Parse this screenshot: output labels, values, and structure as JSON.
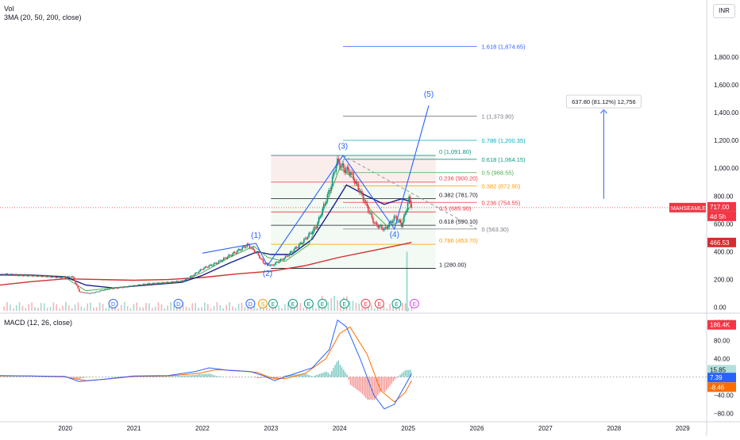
{
  "header": {
    "vol_label": "Vol",
    "ma_label": "3MA (20, 50, 200, close)",
    "currency": "INR"
  },
  "macd_label": "MACD (12, 26, close)",
  "symbol_tag": "MAHSEAMLES",
  "price_tags": {
    "last": "717.00",
    "time_left": "4d 5h",
    "ma200": "466.53",
    "vol": "186.4K"
  },
  "macd_tags": {
    "hist": "15.85",
    "macd": "7.39",
    "signal": "-8.46"
  },
  "measure_box": "637.80 (81.12%) 12,756",
  "wave_labels": [
    "(1)",
    "(2)",
    "(3)",
    "(4)",
    "(5)"
  ],
  "fib_upper": [
    {
      "text": "1.618 (1,874.65)",
      "price": 1874.65,
      "color": "#2962ff"
    },
    {
      "text": "1 (1,373.80)",
      "price": 1373.8,
      "color": "#787b86"
    },
    {
      "text": "0.786 (1,200.35)",
      "price": 1200.35,
      "color": "#00acc1"
    },
    {
      "text": "0.618 (1,064.15)",
      "price": 1064.15,
      "color": "#089981"
    },
    {
      "text": "0.5 (968.55)",
      "price": 968.55,
      "color": "#4caf50"
    },
    {
      "text": "0.382 (872.90)",
      "price": 872.9,
      "color": "#ff9800"
    },
    {
      "text": "0.236 (754.55)",
      "price": 754.55,
      "color": "#f23645"
    },
    {
      "text": "0 (563.30)",
      "price": 563.3,
      "color": "#787b86"
    }
  ],
  "fib_lower": [
    {
      "text": "0 (1,091.80)",
      "price": 1091.8,
      "color": "#089981"
    },
    {
      "text": "0.236 (900.20)",
      "price": 900.2,
      "color": "#f23645"
    },
    {
      "text": "0.382 (781.70)",
      "price": 781.7,
      "color": "#131722"
    },
    {
      "text": "0.5 (685.90)",
      "price": 685.9,
      "color": "#f23645"
    },
    {
      "text": "0.618 (590.10)",
      "price": 590.1,
      "color": "#131722"
    },
    {
      "text": "0.786 (453.70)",
      "price": 453.7,
      "color": "#ff9800"
    },
    {
      "text": "1 (280.00)",
      "price": 280.0,
      "color": "#131722"
    }
  ],
  "event_markers": [
    {
      "label": "D",
      "color": "#2962ff",
      "year": 2020.7
    },
    {
      "label": "D",
      "color": "#2962ff",
      "year": 2021.65
    },
    {
      "label": "D",
      "color": "#2962ff",
      "year": 2022.7
    },
    {
      "label": "S",
      "color": "#ff9800",
      "year": 2022.88
    },
    {
      "label": "E",
      "color": "#089981",
      "year": 2023.03
    },
    {
      "label": "E",
      "color": "#089981",
      "year": 2023.32
    },
    {
      "label": "E",
      "color": "#089981",
      "year": 2023.55
    },
    {
      "label": "E",
      "color": "#089981",
      "year": 2023.75
    },
    {
      "label": "E",
      "color": "#089981",
      "year": 2024.07
    },
    {
      "label": "E",
      "color": "#f23645",
      "year": 2024.38
    },
    {
      "label": "E",
      "color": "#f23645",
      "year": 2024.58
    },
    {
      "label": "E",
      "color": "#089981",
      "year": 2024.83
    },
    {
      "label": "E",
      "color": "#e040fb",
      "year": 2025.09
    }
  ],
  "colors": {
    "up": "#089981",
    "down": "#f23645",
    "ma20": "#4caf50",
    "ma50": "#131f8e",
    "ma200": "#d32f2f",
    "macd": "#2962ff",
    "signal": "#ff6d00",
    "wave": "#2962ff"
  },
  "chart_data": [
    {
      "type": "line",
      "title": "",
      "y_ticks": [
        0,
        200,
        400,
        600,
        800,
        1000,
        1200,
        1400,
        1600,
        1800
      ],
      "y_tick_labels": [
        "0.00",
        "200.00",
        "400.00",
        "600.00",
        "800.00",
        "1,000.00",
        "1,200.00",
        "1,400.00",
        "1,600.00",
        "1,800.00"
      ],
      "x_ticks": [
        2020,
        2021,
        2022,
        2023,
        2024,
        2025,
        2026,
        2027,
        2028,
        2029
      ],
      "xlim": [
        2019.05,
        2029.35
      ],
      "ylim": [
        -30,
        2055
      ],
      "series": [
        {
          "name": "price",
          "x": [
            2019.05,
            2019.4,
            2019.7,
            2019.9,
            2020.1,
            2020.2,
            2020.35,
            2020.6,
            2020.9,
            2021.2,
            2021.5,
            2021.7,
            2021.85,
            2022.0,
            2022.2,
            2022.45,
            2022.65,
            2022.8,
            2022.88,
            2023.0,
            2023.2,
            2023.45,
            2023.65,
            2023.85,
            2023.95,
            2024.05,
            2024.15,
            2024.3,
            2024.5,
            2024.65,
            2024.8,
            2024.9,
            2025.0,
            2025.05
          ],
          "y": [
            240,
            230,
            225,
            215,
            220,
            110,
            100,
            130,
            150,
            170,
            180,
            190,
            230,
            280,
            320,
            390,
            450,
            380,
            320,
            300,
            360,
            470,
            580,
            850,
            1050,
            1000,
            970,
            820,
            600,
            560,
            650,
            590,
            780,
            717
          ]
        },
        {
          "name": "ma20",
          "x": [
            2019.05,
            2019.5,
            2020.0,
            2020.3,
            2020.7,
            2021.2,
            2021.7,
            2022.0,
            2022.4,
            2022.75,
            2022.95,
            2023.2,
            2023.55,
            2023.85,
            2024.0,
            2024.2,
            2024.45,
            2024.7,
            2024.9,
            2025.05
          ],
          "y": [
            230,
            228,
            215,
            120,
            140,
            165,
            185,
            250,
            360,
            440,
            360,
            330,
            450,
            800,
            1000,
            930,
            700,
            580,
            620,
            740
          ]
        },
        {
          "name": "ma50",
          "x": [
            2019.05,
            2019.5,
            2020.0,
            2020.3,
            2020.7,
            2021.2,
            2021.7,
            2022.0,
            2022.4,
            2022.8,
            2023.0,
            2023.3,
            2023.6,
            2023.9,
            2024.1,
            2024.4,
            2024.65,
            2024.9,
            2025.05
          ],
          "y": [
            235,
            232,
            220,
            160,
            140,
            160,
            180,
            230,
            320,
            400,
            380,
            380,
            490,
            720,
            880,
            800,
            740,
            780,
            760
          ]
        },
        {
          "name": "ma200",
          "x": [
            2019.05,
            2019.5,
            2020.0,
            2020.5,
            2021.0,
            2021.5,
            2022.0,
            2022.5,
            2023.0,
            2023.5,
            2024.0,
            2024.5,
            2025.05
          ],
          "y": [
            160,
            185,
            205,
            200,
            195,
            200,
            215,
            240,
            260,
            300,
            360,
            410,
            466.53
          ]
        }
      ]
    },
    {
      "type": "line",
      "title": "",
      "y_ticks": [
        -80,
        -40,
        0,
        40,
        80,
        120
      ],
      "y_tick_labels": [
        "−80.00",
        "−40.00",
        "0.00",
        "40.00",
        "80.00",
        "120.00"
      ],
      "ylim": [
        -95,
        135
      ],
      "series": [
        {
          "name": "macd",
          "x": [
            2019.05,
            2019.5,
            2020.0,
            2020.2,
            2020.5,
            2021.0,
            2021.5,
            2021.9,
            2022.1,
            2022.4,
            2022.7,
            2022.9,
            2023.05,
            2023.3,
            2023.6,
            2023.85,
            2023.97,
            2024.1,
            2024.3,
            2024.5,
            2024.65,
            2024.8,
            2024.95,
            2025.05
          ],
          "y": [
            3,
            2,
            1,
            -10,
            -6,
            2,
            3,
            12,
            20,
            14,
            12,
            2,
            -8,
            5,
            20,
            60,
            125,
            110,
            40,
            -40,
            -70,
            -60,
            -20,
            7.39
          ]
        },
        {
          "name": "signal",
          "x": [
            2019.05,
            2019.5,
            2020.0,
            2020.3,
            2020.6,
            2021.0,
            2021.5,
            2021.95,
            2022.2,
            2022.5,
            2022.8,
            2023.0,
            2023.2,
            2023.5,
            2023.8,
            2024.0,
            2024.15,
            2024.4,
            2024.6,
            2024.8,
            2024.95,
            2025.05
          ],
          "y": [
            2,
            2,
            0,
            -8,
            -5,
            1,
            2,
            8,
            16,
            14,
            10,
            -2,
            -4,
            8,
            40,
            95,
            110,
            50,
            -30,
            -55,
            -35,
            -8.46
          ]
        }
      ]
    }
  ]
}
